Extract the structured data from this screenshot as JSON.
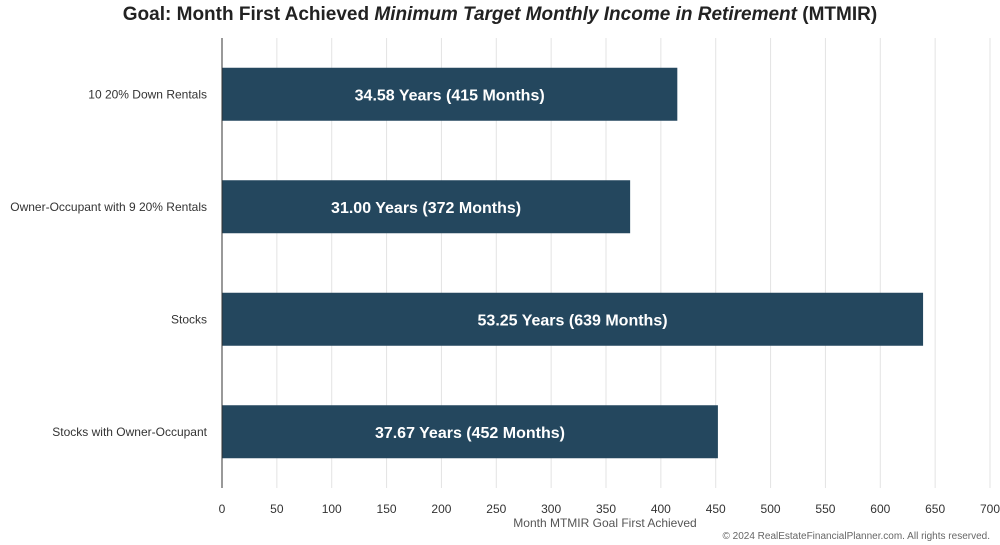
{
  "title": {
    "prefix": "Goal: Month First Achieved ",
    "emphasis": "Minimum Target Monthly Income in Retirement",
    "suffix": " (MTMIR)"
  },
  "chart_data": {
    "type": "bar",
    "orientation": "horizontal",
    "categories": [
      "10 20% Down Rentals",
      "Owner-Occupant with 9 20% Rentals",
      "Stocks",
      "Stocks with Owner-Occupant"
    ],
    "values": [
      415,
      372,
      639,
      452
    ],
    "data_labels": [
      "34.58 Years (415 Months)",
      "31.00 Years (372 Months)",
      "53.25 Years (639 Months)",
      "37.67 Years (452 Months)"
    ],
    "xlabel": "Month MTMIR Goal First Achieved",
    "ylabel": "",
    "xlim": [
      0,
      700
    ],
    "xticks": [
      0,
      50,
      100,
      150,
      200,
      250,
      300,
      350,
      400,
      450,
      500,
      550,
      600,
      650,
      700
    ],
    "grid": true,
    "bar_color": "#24475e",
    "label_color": "#ffffff"
  },
  "footer": {
    "copyright": "© 2024 RealEstateFinancialPlanner.com. All rights reserved."
  }
}
